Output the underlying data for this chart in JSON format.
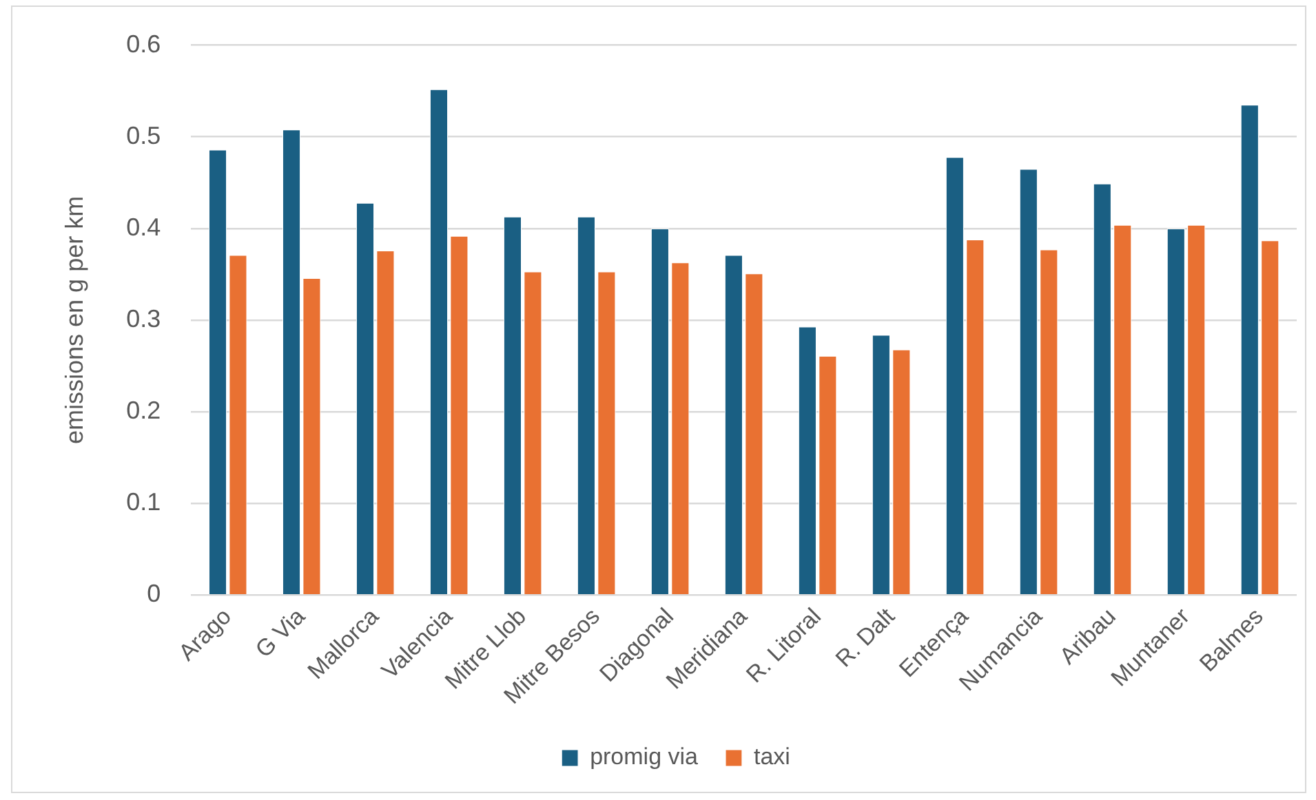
{
  "chart_data": {
    "type": "bar",
    "ylabel": "emissions en g per km",
    "categories": [
      "Arago",
      "G Via",
      "Mallorca",
      "Valencia",
      "Mitre Llob",
      "Mitre Besos",
      "Diagonal",
      "Meridiana",
      "R. Litoral",
      "R. Dalt",
      "Entença",
      "Numancia",
      "Aribau",
      "Muntaner",
      "Balmes"
    ],
    "series": [
      {
        "name": "promig via",
        "color": "#1a5f83",
        "values": [
          0.486,
          0.508,
          0.428,
          0.552,
          0.413,
          0.413,
          0.4,
          0.371,
          0.293,
          0.284,
          0.478,
          0.465,
          0.449,
          0.4,
          0.535
        ]
      },
      {
        "name": "taxi",
        "color": "#e97132",
        "values": [
          0.371,
          0.346,
          0.376,
          0.392,
          0.353,
          0.353,
          0.363,
          0.351,
          0.261,
          0.268,
          0.388,
          0.377,
          0.404,
          0.404,
          0.387
        ]
      }
    ],
    "ylim": [
      0,
      0.6
    ],
    "yticks": [
      0,
      0.1,
      0.2,
      0.3,
      0.4,
      0.5,
      0.6
    ],
    "grid": "y",
    "legend": "bottom"
  }
}
